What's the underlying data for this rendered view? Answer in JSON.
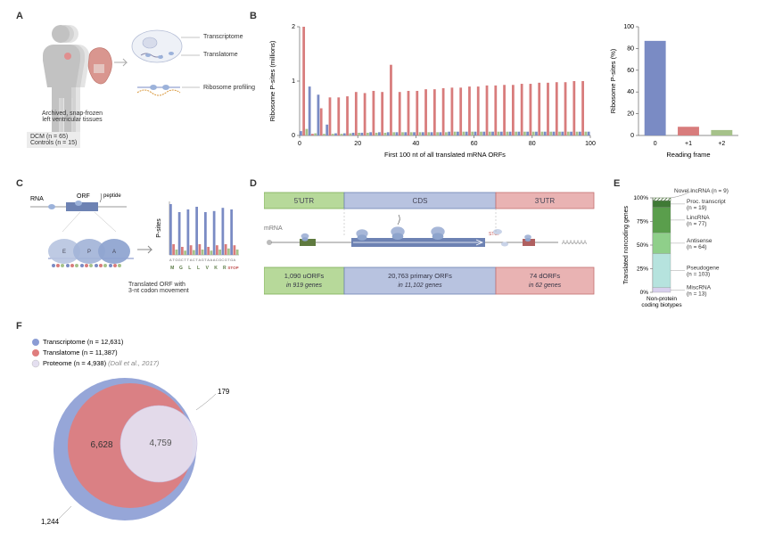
{
  "panels": {
    "A": "A",
    "B": "B",
    "C": "C",
    "D": "D",
    "E": "E",
    "F": "F"
  },
  "A": {
    "transcriptome": "Transcriptome",
    "translatome": "Translatome",
    "riboprof": "Ribosome profiling",
    "archived": "Archived, snap-frozen\nleft ventricular tissues",
    "dcm": "DCM (n = 65)",
    "controls": "Controls (n = 15)",
    "colors": {
      "body": "#c7c7c7",
      "heart": "#d77",
      "cell": "#d0d8e8",
      "ribo": "#9ab8db"
    }
  },
  "B": {
    "left": {
      "xlabel": "First 100 nt of all translated mRNA ORFs",
      "ylabel": "Ribosome P-sites (millions)",
      "xlim": [
        0,
        100
      ],
      "ylim": [
        0,
        2
      ],
      "ytick": [
        0,
        1,
        2
      ],
      "xtick": [
        0,
        20,
        40,
        60,
        80,
        100
      ],
      "bar_colors": [
        "#7a8bc4",
        "#d87c7c",
        "#a6c28a"
      ],
      "frame0_values": [
        0.08,
        2.0,
        0.12,
        0.9,
        0.03,
        0.04,
        0.75,
        0.5,
        0.03,
        0.2,
        0.7,
        0.03,
        0.04,
        0.7,
        0.03,
        0.04,
        0.72,
        0.04,
        0.05,
        0.8,
        0.05,
        0.05,
        0.78,
        0.05,
        0.06,
        0.82,
        0.05,
        0.06,
        0.8,
        0.05,
        0.06,
        1.3,
        0.06,
        0.06,
        0.8,
        0.06,
        0.06,
        0.82,
        0.06,
        0.06,
        0.82,
        0.06,
        0.06,
        0.85,
        0.06,
        0.06,
        0.85,
        0.06,
        0.06,
        0.87,
        0.06,
        0.07,
        0.88,
        0.07,
        0.07,
        0.88,
        0.07,
        0.07,
        0.9,
        0.07,
        0.07,
        0.9,
        0.07,
        0.07,
        0.92,
        0.07,
        0.07,
        0.92,
        0.07,
        0.07,
        0.93,
        0.07,
        0.07,
        0.93,
        0.07,
        0.07,
        0.95,
        0.07,
        0.07,
        0.95,
        0.07,
        0.07,
        0.97,
        0.07,
        0.07,
        0.97,
        0.07,
        0.07,
        0.98,
        0.07,
        0.07,
        0.98,
        0.07,
        0.07,
        1.0,
        0.07,
        0.07,
        1.0,
        0.07,
        0.07
      ]
    },
    "right": {
      "xlabel": "Reading frame",
      "ylabel": "Ribosome P-sites (%)",
      "ylim": [
        0,
        100
      ],
      "ytick": [
        0,
        20,
        40,
        60,
        80,
        100
      ],
      "categories": [
        "0",
        "+1",
        "+2"
      ],
      "values": [
        87,
        8,
        5
      ],
      "colors": [
        "#7a8bc4",
        "#d87c7c",
        "#a6c28a"
      ]
    }
  },
  "C": {
    "rna": "RNA",
    "orf": "ORF",
    "peptide": "peptide",
    "ylabel": "P-sites",
    "caption": "Translated ORF with\n3-nt codon movement",
    "seq": "A T G G C T T A C T A G T A A A C G C G T G A",
    "aa": "M   G   L   L   V   K   R  STOP",
    "bar_colors": [
      "#7a8bc4",
      "#d87c7c",
      "#a6c28a"
    ]
  },
  "D": {
    "labels": {
      "utr5": "5'UTR",
      "cds": "CDS",
      "utr3": "3'UTR",
      "mrna": "mRNA",
      "stop": "STOP"
    },
    "counts": {
      "u": "1,090 uORFs",
      "u2": "in 919 genes",
      "p": "20,763 primary ORFs",
      "p2": "in 11,102 genes",
      "d": "74 dORFs",
      "d2": "in 62 genes"
    },
    "colors": {
      "utr5": "#b7d99a",
      "utr5b": "#7faf57",
      "cds": "#b8c3e0",
      "cdsb": "#6d82b3",
      "utr3": "#e9b3b3",
      "utr3b": "#c47070"
    },
    "aaaa": "AAAAAAA"
  },
  "E": {
    "ylabel": "Translated noncoding genes",
    "title": "Novel lncRNA (n = 9)",
    "segments": [
      {
        "label": "Proc. transcript\n(n = 19)",
        "pct": 7,
        "color": "#3f7a35"
      },
      {
        "label": "LincRNA\n(n = 77)",
        "pct": 27,
        "color": "#5a9e4c"
      },
      {
        "label": "Antisense\n(n = 64)",
        "pct": 22,
        "color": "#8fcf8a"
      },
      {
        "label": "Pseudogene\n(n = 103)",
        "pct": 36,
        "color": "#b6e3de"
      },
      {
        "label": "MiscRNA\n(n = 13)",
        "pct": 5,
        "color": "#d8d0ed"
      }
    ],
    "novel_pct": 3,
    "xlabel": "Non-protein\ncoding biotypes"
  },
  "F": {
    "legend": {
      "trans": "Transcriptome (n = 12,631)",
      "translat": "Translatome (n = 11,387)",
      "prot": "Proteome (n = 4,938)",
      "protref": "(Doll et al., 2017)"
    },
    "nums": {
      "left": "6,628",
      "right": "4,759",
      "outtop": "179",
      "outbot": "1,244"
    },
    "colors": {
      "trans": "#8b9cd4",
      "translat": "#df7d7d",
      "prot": "#e4dff0"
    }
  }
}
